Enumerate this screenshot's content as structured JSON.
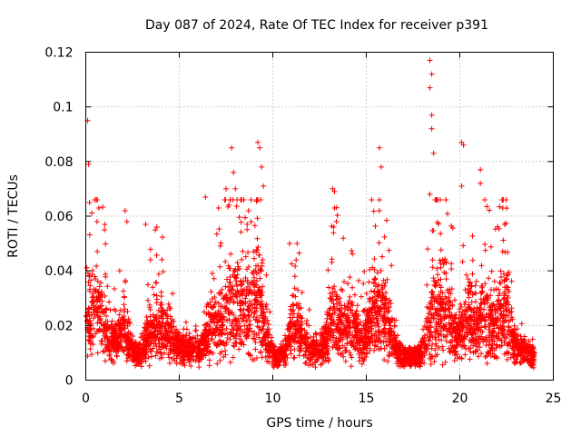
{
  "chart_data": {
    "type": "scatter",
    "title": "Day 087 of 2024, Rate Of TEC Index for receiver p391",
    "xlabel": "GPS time / hours",
    "ylabel": "ROTI / TECUs",
    "xlim": [
      0,
      25
    ],
    "ylim": [
      0,
      0.12
    ],
    "x_ticks": [
      0,
      5,
      10,
      15,
      20,
      25
    ],
    "x_tick_labels": [
      "0",
      "5",
      "10",
      "15",
      "20",
      "25"
    ],
    "y_ticks": [
      0,
      0.02,
      0.04,
      0.06,
      0.08,
      0.1,
      0.12
    ],
    "y_tick_labels": [
      "0",
      "0.02",
      "0.04",
      "0.06",
      "0.08",
      "0.1",
      "0.12"
    ],
    "grid": true,
    "marker": "+",
    "color": "#ff0000",
    "series": [
      {
        "name": "ROTI",
        "peaks": [
          {
            "x": 0.1,
            "y": 0.095
          },
          {
            "x": 0.15,
            "y": 0.079
          },
          {
            "x": 0.2,
            "y": 0.065
          },
          {
            "x": 0.7,
            "y": 0.063
          },
          {
            "x": 0.6,
            "y": 0.058
          },
          {
            "x": 1.0,
            "y": 0.055
          },
          {
            "x": 2.1,
            "y": 0.062
          },
          {
            "x": 2.2,
            "y": 0.058
          },
          {
            "x": 3.2,
            "y": 0.057
          },
          {
            "x": 3.8,
            "y": 0.056
          },
          {
            "x": 6.4,
            "y": 0.067
          },
          {
            "x": 7.1,
            "y": 0.063
          },
          {
            "x": 7.5,
            "y": 0.07
          },
          {
            "x": 7.8,
            "y": 0.085
          },
          {
            "x": 7.9,
            "y": 0.076
          },
          {
            "x": 8.0,
            "y": 0.07
          },
          {
            "x": 8.7,
            "y": 0.062
          },
          {
            "x": 9.2,
            "y": 0.087
          },
          {
            "x": 9.3,
            "y": 0.085
          },
          {
            "x": 9.4,
            "y": 0.078
          },
          {
            "x": 9.5,
            "y": 0.071
          },
          {
            "x": 10.9,
            "y": 0.05
          },
          {
            "x": 11.3,
            "y": 0.05
          },
          {
            "x": 13.2,
            "y": 0.07
          },
          {
            "x": 13.3,
            "y": 0.069
          },
          {
            "x": 13.3,
            "y": 0.063
          },
          {
            "x": 13.4,
            "y": 0.058
          },
          {
            "x": 15.7,
            "y": 0.085
          },
          {
            "x": 15.8,
            "y": 0.078
          },
          {
            "x": 15.7,
            "y": 0.062
          },
          {
            "x": 18.4,
            "y": 0.117
          },
          {
            "x": 18.5,
            "y": 0.112
          },
          {
            "x": 18.4,
            "y": 0.107
          },
          {
            "x": 18.5,
            "y": 0.097
          },
          {
            "x": 18.5,
            "y": 0.092
          },
          {
            "x": 18.6,
            "y": 0.083
          },
          {
            "x": 18.4,
            "y": 0.068
          },
          {
            "x": 20.1,
            "y": 0.087
          },
          {
            "x": 20.2,
            "y": 0.086
          },
          {
            "x": 20.1,
            "y": 0.071
          },
          {
            "x": 21.1,
            "y": 0.077
          },
          {
            "x": 21.1,
            "y": 0.072
          },
          {
            "x": 22.3,
            "y": 0.063
          },
          {
            "x": 22.4,
            "y": 0.057
          }
        ]
      }
    ]
  }
}
